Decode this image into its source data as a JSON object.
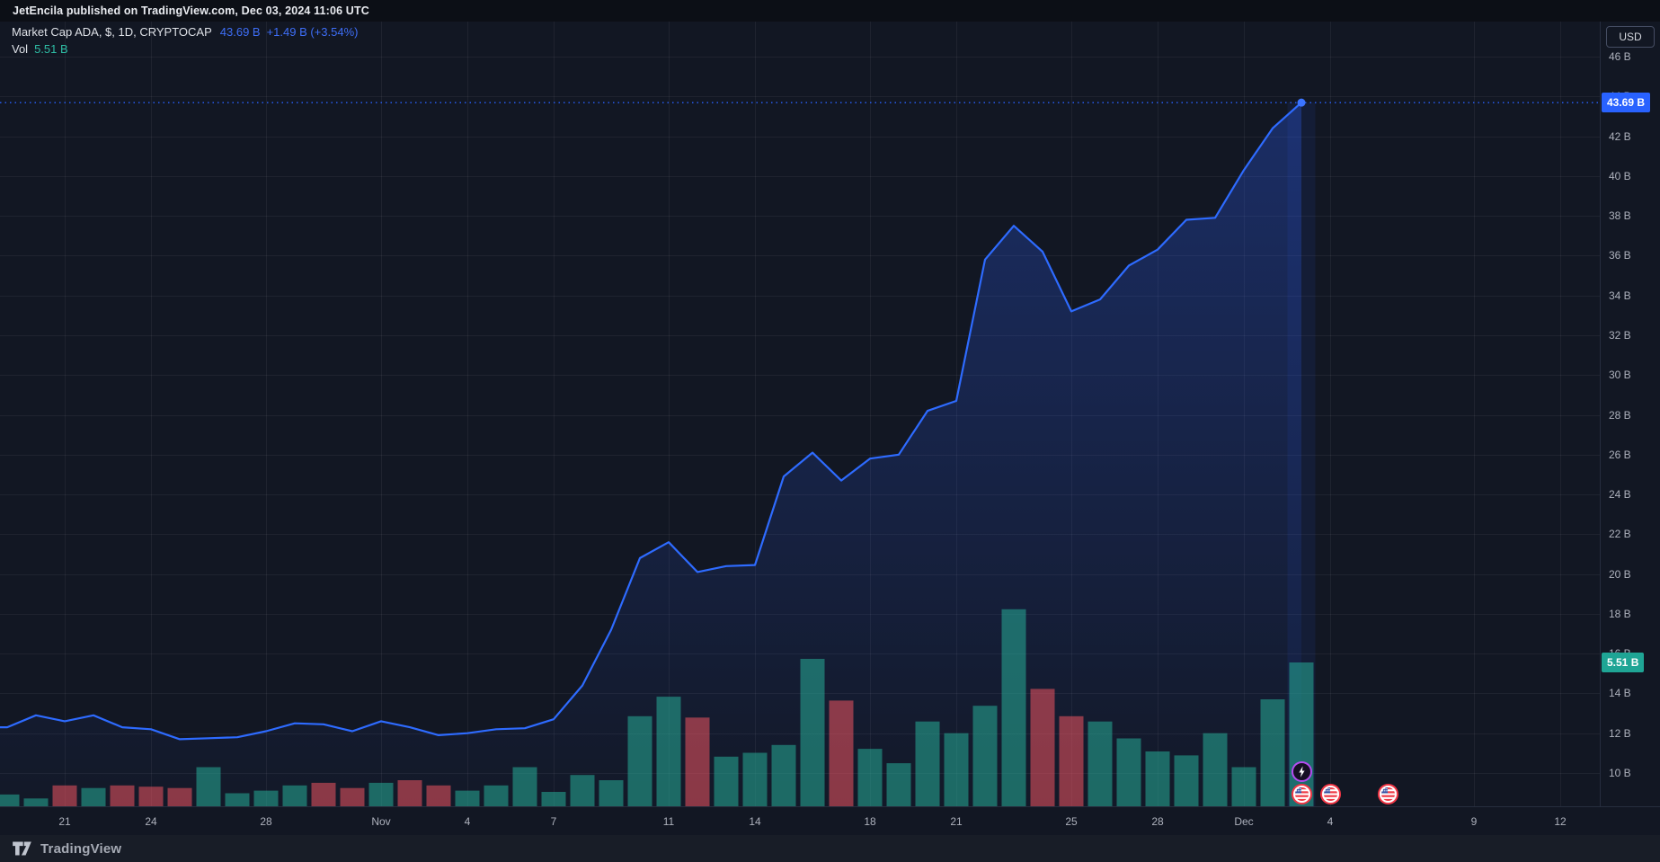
{
  "attribution": "JetEncila published on TradingView.com, Dec 03, 2024 11:06 UTC",
  "legend": {
    "symbol": "Market Cap ADA, $, 1D, CRYPTOCAP",
    "price": "43.69 B",
    "change": "+1.49 B (+3.54%)",
    "vol_label": "Vol",
    "vol_value": "5.51 B"
  },
  "price_axis": {
    "currency_button": "USD",
    "ticks": [
      "46 B",
      "44 B",
      "42 B",
      "40 B",
      "38 B",
      "36 B",
      "34 B",
      "32 B",
      "30 B",
      "28 B",
      "26 B",
      "24 B",
      "22 B",
      "20 B",
      "18 B",
      "16 B",
      "14 B",
      "12 B",
      "10 B"
    ],
    "price_badge": "43.69 B",
    "vol_badge": "5.51 B"
  },
  "footer": {
    "brand": "TradingView"
  },
  "colors": {
    "accent_blue": "#2962FF",
    "up_teal": "#22AB94",
    "down_red": "#F7525F",
    "badge_vol_bg": "#1FA595",
    "chart_bg": "#121723"
  },
  "chart_data": {
    "type": "area",
    "title": "Market Cap ADA, $, 1D, CRYPTOCAP",
    "ylabel": "USD (billions)",
    "y_axis": {
      "min": 10,
      "max": 46,
      "step": 2,
      "grid": true
    },
    "vol_axis": {
      "current": 5.51
    },
    "x_labels": [
      {
        "label": "21",
        "i": 2
      },
      {
        "label": "24",
        "i": 5
      },
      {
        "label": "28",
        "i": 9
      },
      {
        "label": "Nov",
        "i": 13
      },
      {
        "label": "4",
        "i": 16
      },
      {
        "label": "7",
        "i": 19
      },
      {
        "label": "11",
        "i": 23
      },
      {
        "label": "14",
        "i": 26
      },
      {
        "label": "18",
        "i": 30
      },
      {
        "label": "21",
        "i": 33
      },
      {
        "label": "25",
        "i": 37
      },
      {
        "label": "28",
        "i": 40
      },
      {
        "label": "Dec",
        "i": 43
      },
      {
        "label": "4",
        "i": 46
      },
      {
        "label": "9",
        "i": 51
      },
      {
        "label": "12",
        "i": 54
      }
    ],
    "series": [
      {
        "date": "Oct 19",
        "mcap_b": 12.3,
        "vol_b": 0.45,
        "dir": "up"
      },
      {
        "date": "Oct 20",
        "mcap_b": 12.9,
        "vol_b": 0.3,
        "dir": "up"
      },
      {
        "date": "Oct 21",
        "mcap_b": 12.6,
        "vol_b": 0.8,
        "dir": "down"
      },
      {
        "date": "Oct 22",
        "mcap_b": 12.9,
        "vol_b": 0.7,
        "dir": "up"
      },
      {
        "date": "Oct 23",
        "mcap_b": 12.3,
        "vol_b": 0.8,
        "dir": "down"
      },
      {
        "date": "Oct 24",
        "mcap_b": 12.2,
        "vol_b": 0.75,
        "dir": "down"
      },
      {
        "date": "Oct 25",
        "mcap_b": 11.7,
        "vol_b": 0.7,
        "dir": "down"
      },
      {
        "date": "Oct 26",
        "mcap_b": 11.75,
        "vol_b": 1.5,
        "dir": "up"
      },
      {
        "date": "Oct 27",
        "mcap_b": 11.8,
        "vol_b": 0.5,
        "dir": "up"
      },
      {
        "date": "Oct 28",
        "mcap_b": 12.1,
        "vol_b": 0.6,
        "dir": "up"
      },
      {
        "date": "Oct 29",
        "mcap_b": 12.5,
        "vol_b": 0.8,
        "dir": "up"
      },
      {
        "date": "Oct 30",
        "mcap_b": 12.45,
        "vol_b": 0.9,
        "dir": "down"
      },
      {
        "date": "Oct 31",
        "mcap_b": 12.1,
        "vol_b": 0.7,
        "dir": "down"
      },
      {
        "date": "Nov 1",
        "mcap_b": 12.6,
        "vol_b": 0.9,
        "dir": "up"
      },
      {
        "date": "Nov 2",
        "mcap_b": 12.3,
        "vol_b": 1.0,
        "dir": "down"
      },
      {
        "date": "Nov 3",
        "mcap_b": 11.9,
        "vol_b": 0.8,
        "dir": "down"
      },
      {
        "date": "Nov 4",
        "mcap_b": 12.0,
        "vol_b": 0.6,
        "dir": "up"
      },
      {
        "date": "Nov 5",
        "mcap_b": 12.2,
        "vol_b": 0.8,
        "dir": "up"
      },
      {
        "date": "Nov 6",
        "mcap_b": 12.25,
        "vol_b": 1.5,
        "dir": "up"
      },
      {
        "date": "Nov 7",
        "mcap_b": 12.7,
        "vol_b": 0.55,
        "dir": "up"
      },
      {
        "date": "Nov 8",
        "mcap_b": 14.4,
        "vol_b": 1.2,
        "dir": "up"
      },
      {
        "date": "Nov 9",
        "mcap_b": 17.2,
        "vol_b": 1.0,
        "dir": "up"
      },
      {
        "date": "Nov 10",
        "mcap_b": 20.8,
        "vol_b": 3.45,
        "dir": "up"
      },
      {
        "date": "Nov 11",
        "mcap_b": 21.6,
        "vol_b": 4.2,
        "dir": "up"
      },
      {
        "date": "Nov 12",
        "mcap_b": 20.1,
        "vol_b": 3.4,
        "dir": "down"
      },
      {
        "date": "Nov 13",
        "mcap_b": 20.4,
        "vol_b": 1.9,
        "dir": "up"
      },
      {
        "date": "Nov 14",
        "mcap_b": 20.45,
        "vol_b": 2.05,
        "dir": "up"
      },
      {
        "date": "Nov 15",
        "mcap_b": 24.9,
        "vol_b": 2.35,
        "dir": "up"
      },
      {
        "date": "Nov 16",
        "mcap_b": 26.1,
        "vol_b": 5.65,
        "dir": "up"
      },
      {
        "date": "Nov 17",
        "mcap_b": 24.7,
        "vol_b": 4.05,
        "dir": "down"
      },
      {
        "date": "Nov 18",
        "mcap_b": 25.8,
        "vol_b": 2.2,
        "dir": "up"
      },
      {
        "date": "Nov 19",
        "mcap_b": 26.0,
        "vol_b": 1.65,
        "dir": "up"
      },
      {
        "date": "Nov 20",
        "mcap_b": 28.2,
        "vol_b": 3.25,
        "dir": "up"
      },
      {
        "date": "Nov 21",
        "mcap_b": 28.7,
        "vol_b": 2.8,
        "dir": "up"
      },
      {
        "date": "Nov 22",
        "mcap_b": 35.8,
        "vol_b": 3.85,
        "dir": "up"
      },
      {
        "date": "Nov 23",
        "mcap_b": 37.5,
        "vol_b": 7.55,
        "dir": "up"
      },
      {
        "date": "Nov 24",
        "mcap_b": 36.2,
        "vol_b": 4.5,
        "dir": "down"
      },
      {
        "date": "Nov 25",
        "mcap_b": 33.2,
        "vol_b": 3.45,
        "dir": "down"
      },
      {
        "date": "Nov 26",
        "mcap_b": 33.8,
        "vol_b": 3.25,
        "dir": "up"
      },
      {
        "date": "Nov 27",
        "mcap_b": 35.5,
        "vol_b": 2.6,
        "dir": "up"
      },
      {
        "date": "Nov 28",
        "mcap_b": 36.3,
        "vol_b": 2.1,
        "dir": "up"
      },
      {
        "date": "Nov 29",
        "mcap_b": 37.8,
        "vol_b": 1.95,
        "dir": "up"
      },
      {
        "date": "Nov 30",
        "mcap_b": 37.9,
        "vol_b": 2.8,
        "dir": "up"
      },
      {
        "date": "Dec 1",
        "mcap_b": 40.3,
        "vol_b": 1.5,
        "dir": "up"
      },
      {
        "date": "Dec 2",
        "mcap_b": 42.4,
        "vol_b": 4.1,
        "dir": "up"
      },
      {
        "date": "Dec 3",
        "mcap_b": 43.69,
        "vol_b": 5.51,
        "dir": "up"
      }
    ],
    "last_point": {
      "date": "Dec 3",
      "mcap_b": 43.69,
      "vol_b": 5.51
    },
    "events": [
      {
        "icon": "lightning",
        "i": 45,
        "row": 0
      },
      {
        "icon": "us-flag",
        "i": 45,
        "row": 1
      },
      {
        "icon": "us-flag",
        "i": 46,
        "row": 1
      },
      {
        "icon": "us-flag",
        "i": 48,
        "row": 1
      }
    ]
  }
}
